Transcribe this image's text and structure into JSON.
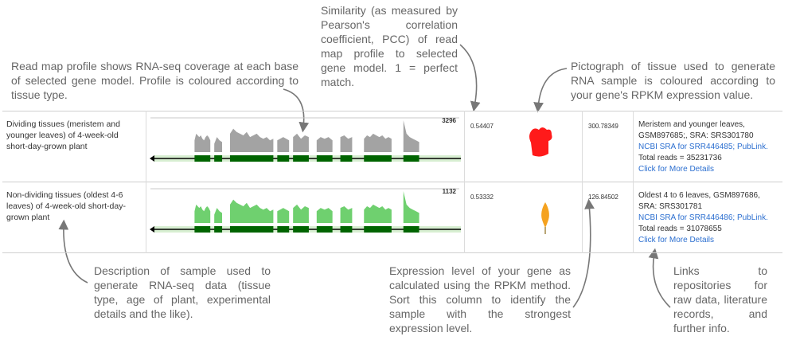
{
  "annotations": {
    "read_map": "Read map profile shows RNA-seq coverage at each base of selected gene model. Profile is coloured according to tissue type.",
    "similarity": "Similarity (as measured by Pearson's correlation coefficient, PCC) of read map profile to selected gene model. 1 = perfect match.",
    "pictograph": "Pictograph of tissue used to generate RNA sample is coloured according to your gene's RPKM expression value.",
    "description": "Description of sample used to generate RNA-seq data (tissue type, age of plant, experimental details and the like).",
    "expression": "Expression level of your gene as calculated using the RPKM method. Sort this column to identify the sample with the strongest expression level.",
    "links": "Links to repositories for raw data, literature records, and further info."
  },
  "rows": [
    {
      "description": "Dividing tissues (meristem and younger leaves) of 4-week-old short-day-grown plant",
      "max_label": "3296",
      "pcc": "0.54407",
      "rpkm": "300.78349",
      "tissue_color": "#ff1a1a",
      "coverage_color": "#a3a3a3",
      "details_text": "Meristem and younger leaves, GSM897685;, SRA: SRS301780",
      "sra_link": "NCBI SRA for SRR446485; PubLink.",
      "reads": "Total reads = 35231736",
      "more_link": "Click for More Details"
    },
    {
      "description": "Non-dividing tissues (oldest 4-6 leaves) of 4-week-old short-day-grown plant",
      "max_label": "1132",
      "pcc": "0.53332",
      "rpkm": "126.84502",
      "tissue_color": "#f5a21f",
      "coverage_color": "#6fd06f",
      "details_text": "Oldest 4 to 6 leaves, GSM897686, SRA: SRS301781",
      "sra_link": "NCBI SRA for SRR446486; PubLink.",
      "reads": "Total reads = 31078655",
      "more_link": "Click for More Details"
    }
  ]
}
